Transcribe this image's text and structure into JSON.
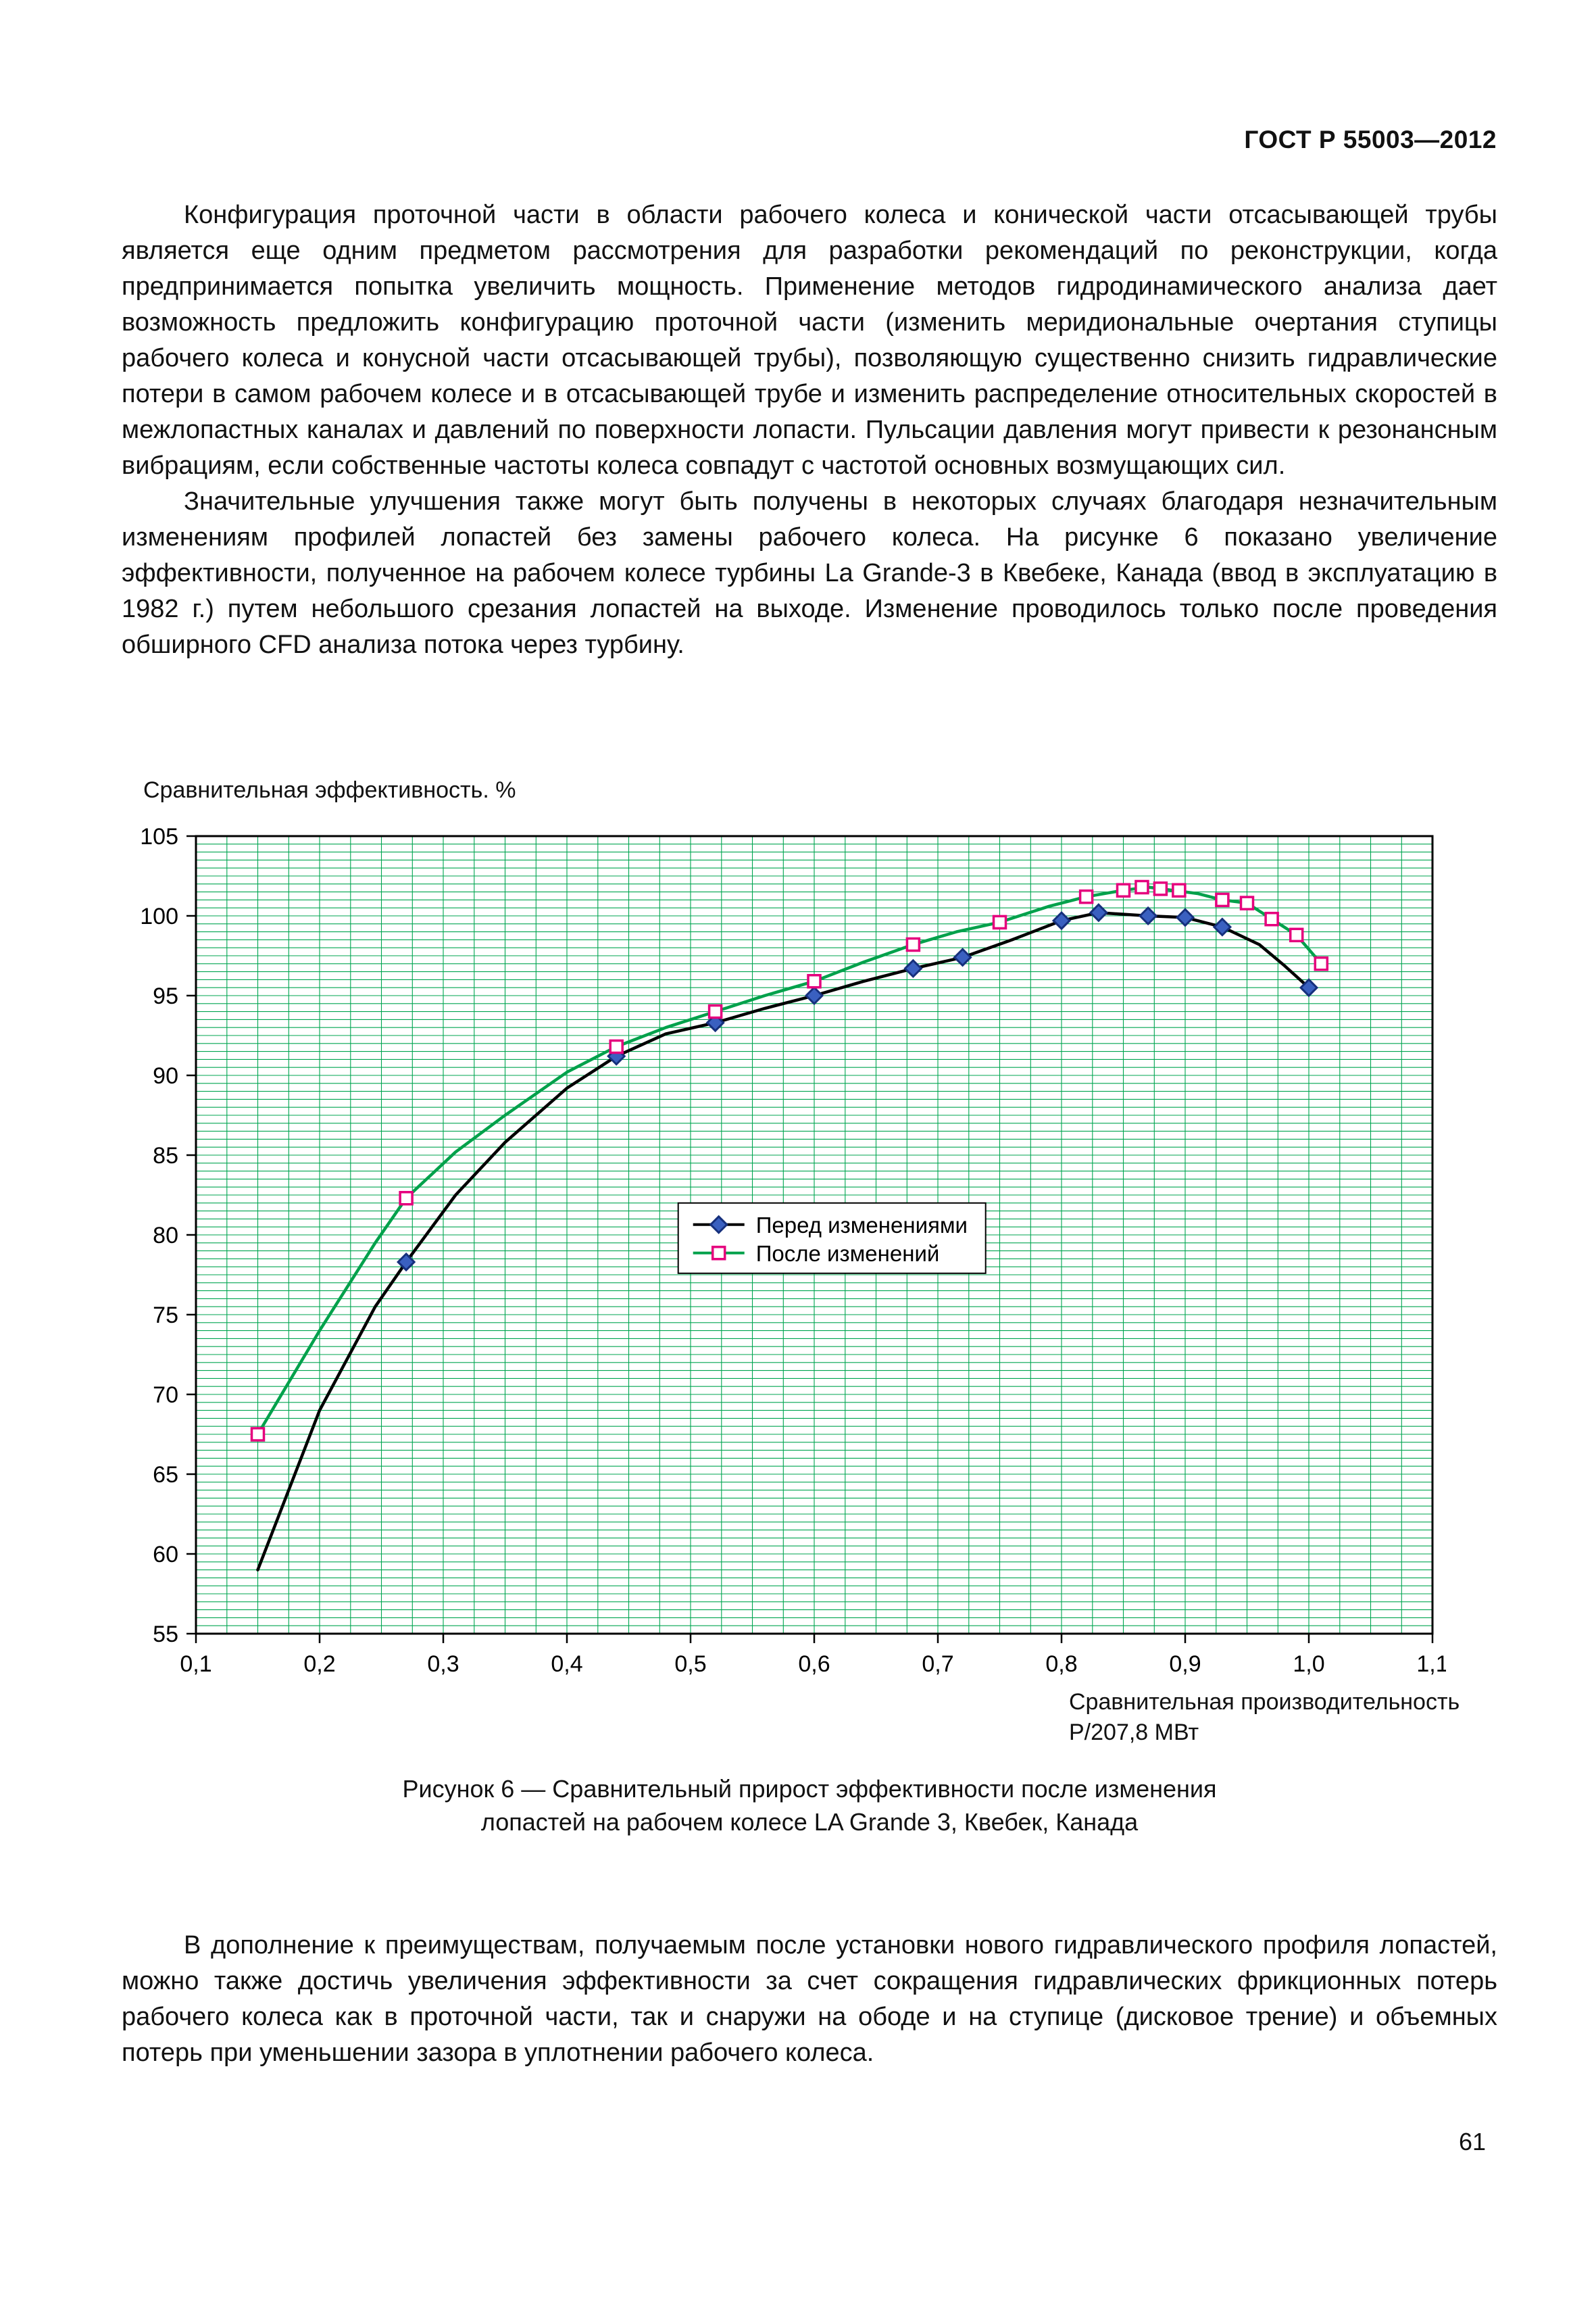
{
  "header": {
    "doc_code": "ГОСТ Р 55003—2012"
  },
  "paragraphs": {
    "p1": "Конфигурация проточной части в области рабочего колеса и конической части отсасывающей трубы является еще одним предметом рассмотрения для разработки рекомендаций по реконструкции, когда предпринимается попытка увеличить мощность. Применение методов гидродинамического анализа дает возможность предложить конфигурацию проточной части (изменить меридиональные очертания ступицы рабочего колеса и конусной части отсасывающей трубы), позволяющую существенно снизить гидравлические потери в самом рабочем колесе и в отсасывающей трубе и изменить распределение относительных скоростей в межлопастных каналах и давлений по поверхности лопасти. Пульсации давления могут привести к резонансным вибрациям, если собственные частоты колеса совпадут с частотой основных возмущающих сил.",
    "p2": "Значительные улучшения также могут быть получены в некоторых случаях благодаря незначительным изменениям профилей лопастей без замены рабочего колеса. На рисунке 6 показано увеличение эффективности, полученное на рабочем колесе турбины La Grande-3 в Квебеке, Канада (ввод в эксплуатацию в 1982 г.) путем небольшого срезания лопастей на выходе. Изменение проводилось только после проведения обширного CFD анализа потока через турбину.",
    "p3": "В дополнение к преимуществам, получаемым после установки нового гидравлического профиля лопастей, можно также достичь увеличения эффективности за счет сокращения гидравлических фрикционных потерь рабочего колеса как в проточной части, так и снаружи на ободе и на ступице (дисковое трение) и объемных потерь при уменьшении зазора в уплотнении рабочего колеса."
  },
  "figure": {
    "caption_line1": "Рисунок 6 — Сравнительный прирост эффективности после изменения",
    "caption_line2": "лопастей на рабочем колесе LA Grande 3, Квебек, Канада"
  },
  "page_number": "61",
  "chart_data": {
    "type": "line",
    "title": "Сравнительная эффективность. %",
    "xlabel_line1": "Сравнительная производительность",
    "xlabel_line2": "Р/207,8 МВт",
    "xlim": [
      0.1,
      1.1
    ],
    "ylim": [
      55,
      105
    ],
    "x_ticks": [
      0.1,
      0.2,
      0.3,
      0.4,
      0.5,
      0.6,
      0.7,
      0.8,
      0.9,
      1.0,
      1.1
    ],
    "x_tick_labels": [
      "0,1",
      "0,2",
      "0,3",
      "0,4",
      "0,5",
      "0,6",
      "0,7",
      "0,8",
      "0,9",
      "1,0",
      "1,1"
    ],
    "y_ticks": [
      55,
      60,
      65,
      70,
      75,
      80,
      85,
      90,
      95,
      100,
      105
    ],
    "grid": {
      "color": "#00A550",
      "h_step": 0.5,
      "v_step": 0.025
    },
    "legend": {
      "x": 0.49,
      "y": 82.0,
      "entries": [
        "Перед изменениями",
        "После изменений"
      ]
    },
    "series": [
      {
        "name": "Перед изменениями",
        "line_color": "#000000",
        "marker": "diamond",
        "marker_color": "#16307C",
        "marker_fill": "#3A60C0",
        "points": [
          [
            0.15,
            59.0
          ],
          [
            0.2,
            69.0
          ],
          [
            0.245,
            75.5
          ],
          [
            0.27,
            78.3
          ],
          [
            0.31,
            82.5
          ],
          [
            0.35,
            85.8
          ],
          [
            0.4,
            89.2
          ],
          [
            0.44,
            91.2
          ],
          [
            0.48,
            92.6
          ],
          [
            0.52,
            93.3
          ],
          [
            0.56,
            94.2
          ],
          [
            0.6,
            95.0
          ],
          [
            0.64,
            95.9
          ],
          [
            0.68,
            96.7
          ],
          [
            0.72,
            97.4
          ],
          [
            0.76,
            98.5
          ],
          [
            0.8,
            99.7
          ],
          [
            0.83,
            100.2
          ],
          [
            0.87,
            100.0
          ],
          [
            0.9,
            99.9
          ],
          [
            0.93,
            99.3
          ],
          [
            0.96,
            98.2
          ],
          [
            0.98,
            96.9
          ],
          [
            1.0,
            95.5
          ]
        ],
        "marker_points": [
          [
            0.27,
            78.3
          ],
          [
            0.44,
            91.2
          ],
          [
            0.52,
            93.3
          ],
          [
            0.6,
            95.0
          ],
          [
            0.68,
            96.7
          ],
          [
            0.72,
            97.4
          ],
          [
            0.8,
            99.7
          ],
          [
            0.83,
            100.2
          ],
          [
            0.87,
            100.0
          ],
          [
            0.9,
            99.9
          ],
          [
            0.93,
            99.3
          ],
          [
            1.0,
            95.5
          ]
        ]
      },
      {
        "name": "После изменений",
        "line_color": "#00A14B",
        "marker": "square",
        "marker_color": "#E5007D",
        "marker_fill": "#FFFFFF",
        "points": [
          [
            0.15,
            67.5
          ],
          [
            0.2,
            74.0
          ],
          [
            0.245,
            79.5
          ],
          [
            0.27,
            82.3
          ],
          [
            0.31,
            85.2
          ],
          [
            0.35,
            87.5
          ],
          [
            0.4,
            90.2
          ],
          [
            0.44,
            91.8
          ],
          [
            0.48,
            93.0
          ],
          [
            0.52,
            94.0
          ],
          [
            0.56,
            95.0
          ],
          [
            0.6,
            95.9
          ],
          [
            0.64,
            97.1
          ],
          [
            0.68,
            98.2
          ],
          [
            0.715,
            99.0
          ],
          [
            0.75,
            99.6
          ],
          [
            0.79,
            100.6
          ],
          [
            0.82,
            101.2
          ],
          [
            0.85,
            101.6
          ],
          [
            0.87,
            101.8
          ],
          [
            0.89,
            101.6
          ],
          [
            0.91,
            101.4
          ],
          [
            0.93,
            101.0
          ],
          [
            0.95,
            100.8
          ],
          [
            0.97,
            99.8
          ],
          [
            0.99,
            98.8
          ],
          [
            1.01,
            97.0
          ]
        ],
        "marker_points": [
          [
            0.15,
            67.5
          ],
          [
            0.27,
            82.3
          ],
          [
            0.44,
            91.8
          ],
          [
            0.52,
            94.0
          ],
          [
            0.6,
            95.9
          ],
          [
            0.68,
            98.2
          ],
          [
            0.75,
            99.6
          ],
          [
            0.82,
            101.2
          ],
          [
            0.85,
            101.6
          ],
          [
            0.865,
            101.8
          ],
          [
            0.88,
            101.7
          ],
          [
            0.895,
            101.6
          ],
          [
            0.93,
            101.0
          ],
          [
            0.95,
            100.8
          ],
          [
            0.97,
            99.8
          ],
          [
            0.99,
            98.8
          ],
          [
            1.01,
            97.0
          ]
        ]
      }
    ]
  }
}
